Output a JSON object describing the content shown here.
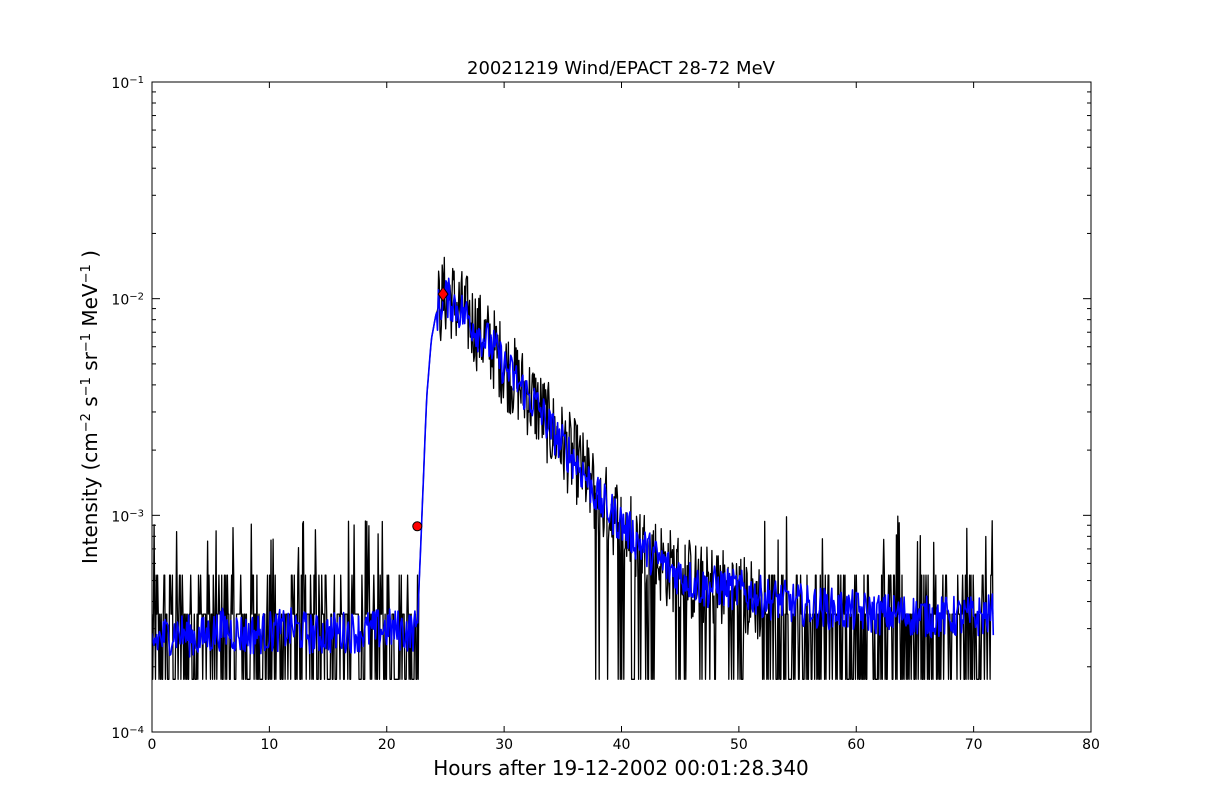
{
  "chart_data": {
    "type": "line",
    "title": "20021219 Wind/EPACT 28-72 MeV",
    "xlabel": "Hours after 19-12-2002 00:01:28.340",
    "ylabel": {
      "prefix": "Intensity (cm",
      "exp1": "−2",
      "s": " s",
      "exp2": "−1",
      "sr": " sr",
      "exp3": "−1",
      "mev": " MeV",
      "exp4": "−1",
      "suffix": " )"
    },
    "xlim": [
      0,
      80
    ],
    "ylim": [
      0.0001,
      0.1
    ],
    "yscale": "log",
    "grid": false,
    "legend": "none",
    "x_ticks": [
      0,
      10,
      20,
      30,
      40,
      50,
      60,
      70,
      80
    ],
    "y_ticks": [
      {
        "value": 0.0001,
        "base": "10",
        "exp": "−4"
      },
      {
        "value": 0.001,
        "base": "10",
        "exp": "−3"
      },
      {
        "value": 0.01,
        "base": "10",
        "exp": "−2"
      },
      {
        "value": 0.1,
        "base": "10",
        "exp": "−1"
      }
    ],
    "series": [
      {
        "color": "#000000",
        "description_hint": "raw intensity",
        "x": [
          0,
          1,
          2,
          3,
          4,
          5,
          6,
          7,
          8,
          9,
          10,
          11,
          12,
          13,
          14,
          15,
          16,
          17,
          18,
          19,
          20,
          21,
          22,
          22.6,
          23.0,
          23.4,
          23.8,
          24.2,
          24.6,
          25.0,
          25.5,
          26.0,
          27,
          28,
          29,
          30,
          31,
          32,
          33,
          34,
          35,
          36,
          37,
          38,
          39,
          40,
          41,
          42,
          43,
          44,
          45,
          46,
          47,
          48,
          49,
          50,
          51,
          52,
          53,
          54,
          55,
          56,
          57,
          58,
          59,
          60,
          61,
          62,
          63,
          64,
          65,
          66,
          67,
          68,
          69,
          70,
          71,
          71.7
        ],
        "y": [
          0.00025,
          0.0003,
          0.00022,
          0.00035,
          0.00028,
          0.0003,
          0.00026,
          0.00033,
          0.00027,
          0.00029,
          0.00031,
          0.00025,
          0.0003,
          0.00034,
          0.00026,
          0.0003,
          0.00028,
          0.00033,
          0.00029,
          0.00027,
          0.0003,
          0.00032,
          0.00028,
          0.0003,
          0.001,
          0.0035,
          0.0065,
          0.0085,
          0.0095,
          0.0105,
          0.01,
          0.0092,
          0.0082,
          0.0068,
          0.006,
          0.0049,
          0.0042,
          0.0036,
          0.0031,
          0.0025,
          0.0021,
          0.0018,
          0.0015,
          0.0012,
          0.00105,
          0.00092,
          0.0008,
          0.0007,
          0.00063,
          0.00057,
          0.00053,
          0.0005,
          0.00046,
          0.00048,
          0.00045,
          0.00043,
          0.00041,
          0.0004,
          0.00038,
          0.00037,
          0.00036,
          0.00037,
          0.00035,
          0.00036,
          0.00034,
          0.00035,
          0.00036,
          0.00034,
          0.00035,
          0.00033,
          0.00034,
          0.00035,
          0.00033,
          0.00034,
          0.00035,
          0.00034,
          0.00033,
          0.00035
        ],
        "noise": "high"
      },
      {
        "color": "#0000ff",
        "description_hint": "smoothed intensity",
        "x": [
          0,
          2,
          4,
          6,
          8,
          10,
          12,
          14,
          16,
          18,
          20,
          22,
          22.6,
          23.0,
          23.4,
          23.8,
          24.2,
          24.6,
          25.0,
          25.5,
          26.0,
          27,
          28,
          29,
          30,
          31,
          32,
          33,
          34,
          35,
          36,
          37,
          38,
          39,
          40,
          41,
          42,
          43,
          44,
          45,
          46,
          47,
          48,
          50,
          52,
          54,
          56,
          58,
          60,
          62,
          64,
          66,
          68,
          70,
          71.7
        ],
        "y": [
          0.00026,
          0.00029,
          0.00027,
          0.0003,
          0.00028,
          0.00029,
          0.0003,
          0.00028,
          0.00029,
          0.00029,
          0.0003,
          0.00029,
          0.0003,
          0.001,
          0.0035,
          0.0065,
          0.0085,
          0.0095,
          0.0102,
          0.0098,
          0.0091,
          0.0081,
          0.0068,
          0.006,
          0.0049,
          0.0042,
          0.0036,
          0.0031,
          0.0025,
          0.0021,
          0.0018,
          0.0015,
          0.0012,
          0.00105,
          0.00092,
          0.0008,
          0.0007,
          0.00063,
          0.00057,
          0.00053,
          0.0005,
          0.00046,
          0.00047,
          0.00045,
          0.00042,
          0.0004,
          0.00038,
          0.00037,
          0.00036,
          0.00035,
          0.00035,
          0.00034,
          0.00034,
          0.00034,
          0.00035
        ],
        "noise": "low"
      }
    ],
    "markers": [
      {
        "x": 22.6,
        "y": 0.00089,
        "shape": "circle",
        "color": "#ff0000"
      },
      {
        "x": 24.8,
        "y": 0.0105,
        "shape": "diamond",
        "color": "#ff0000"
      }
    ]
  }
}
